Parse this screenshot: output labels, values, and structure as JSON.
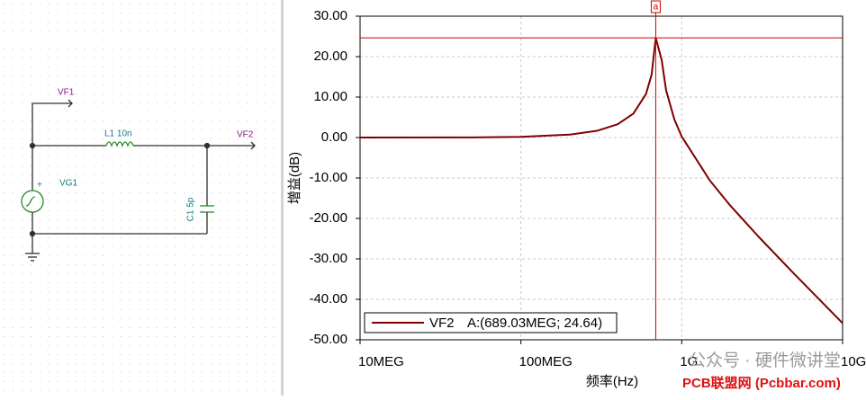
{
  "schematic": {
    "labels": {
      "vf1": "VF1",
      "vf2": "VF2",
      "l1": "L1 10n",
      "vg1": "VG1",
      "c1": "C1 5p",
      "plus": "+"
    }
  },
  "chart_data": {
    "type": "line",
    "ylabel": "增益(dB)",
    "xlabel": "频率(Hz)",
    "log_x": true,
    "grid": true,
    "x": [
      10000000,
      50000000,
      100000000,
      200000000,
      300000000,
      400000000,
      500000000,
      600000000,
      650000000,
      689030000,
      750000000,
      800000000,
      900000000,
      1000000000,
      1500000000,
      2000000000,
      3000000000,
      5000000000,
      10000000000
    ],
    "series": [
      {
        "name": "VF2",
        "color": "#800000",
        "values": [
          0.0,
          0.04,
          0.17,
          0.71,
          1.7,
          3.3,
          5.9,
          10.8,
          15.6,
          24.64,
          19.2,
          11.6,
          4.45,
          0.23,
          -10.7,
          -16.8,
          -24.5,
          -33.7,
          -45.9
        ]
      }
    ],
    "xlim": [
      10000000,
      10000000000
    ],
    "xticks": [
      {
        "value": 10000000,
        "label": "10MEG"
      },
      {
        "value": 100000000,
        "label": "100MEG"
      },
      {
        "value": 1000000000,
        "label": "1G"
      },
      {
        "value": 10000000000,
        "label": "10G"
      }
    ],
    "ylim": [
      -50,
      30
    ],
    "yticks": [
      {
        "value": 30,
        "label": "30.00"
      },
      {
        "value": 20,
        "label": "20.00"
      },
      {
        "value": 10,
        "label": "10.00"
      },
      {
        "value": 0,
        "label": "0.00"
      },
      {
        "value": -10,
        "label": "-10.00"
      },
      {
        "value": -20,
        "label": "-20.00"
      },
      {
        "value": -30,
        "label": "-30.00"
      },
      {
        "value": -40,
        "label": "-40.00"
      },
      {
        "value": -50,
        "label": "-50.00"
      }
    ],
    "cursor": {
      "name": "a",
      "x": 689030000,
      "y": 24.64,
      "color": "#d00000",
      "label": "A:(689.03MEG; 24.64)"
    }
  },
  "watermark": {
    "wechat": "公众号 · 硬件微讲堂",
    "site": "PCB联盟网 (Pcbbar.com)"
  }
}
